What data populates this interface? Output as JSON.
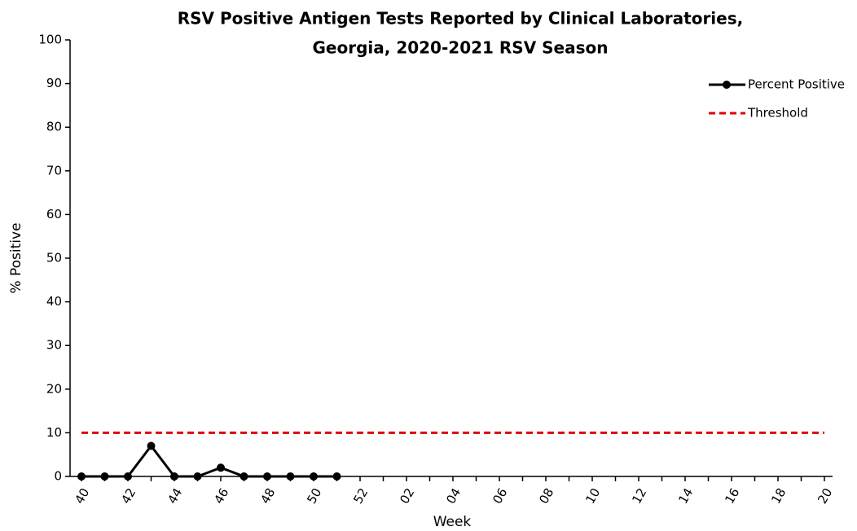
{
  "chart_data": {
    "type": "line",
    "title": [
      "RSV Positive Antigen Tests Reported by Clinical Laboratories,",
      "Georgia, 2020-2021 RSV Season"
    ],
    "x_label": "Week",
    "y_label": "% Positive",
    "categories": [
      "40",
      null,
      "42",
      null,
      "44",
      null,
      "46",
      null,
      "48",
      null,
      "50",
      null,
      "52",
      null,
      "02",
      null,
      "04",
      null,
      "06",
      null,
      "08",
      null,
      "10",
      null,
      "12",
      null,
      "14",
      null,
      "16",
      null,
      "18",
      null,
      "20"
    ],
    "series": [
      {
        "name": "Percent Positive",
        "color": "#000000",
        "marker": "circle",
        "linestyle": "solid",
        "values": [
          0,
          0,
          0,
          7,
          0,
          0,
          2,
          0,
          0,
          0,
          0,
          0,
          null,
          null,
          null,
          null,
          null,
          null,
          null,
          null,
          null,
          null,
          null,
          null,
          null,
          null,
          null,
          null,
          null,
          null,
          null,
          null,
          null
        ]
      },
      {
        "name": "Threshold",
        "color": "#e00000",
        "marker": null,
        "linestyle": "dashed",
        "values": [
          10,
          10,
          10,
          10,
          10,
          10,
          10,
          10,
          10,
          10,
          10,
          10,
          10,
          10,
          10,
          10,
          10,
          10,
          10,
          10,
          10,
          10,
          10,
          10,
          10,
          10,
          10,
          10,
          10,
          10,
          10,
          10,
          10
        ]
      }
    ],
    "ylim": [
      0,
      100
    ],
    "yticks": [
      0,
      10,
      20,
      30,
      40,
      50,
      60,
      70,
      80,
      90,
      100
    ],
    "grid": false,
    "legend": "upper right"
  }
}
